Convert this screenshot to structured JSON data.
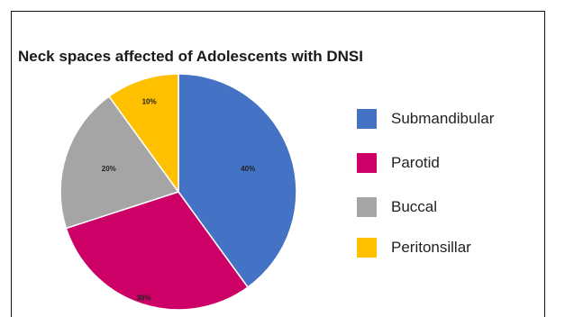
{
  "chart_data": {
    "type": "pie",
    "title": "Neck spaces affected of Adolescents with DNSI",
    "categories": [
      "Submandibular",
      "Parotid",
      "Buccal",
      "Peritonsillar"
    ],
    "values": [
      40,
      30,
      20,
      10
    ],
    "labels": [
      "40%",
      "30%",
      "20%",
      "10%"
    ],
    "colors": [
      "#4472C4",
      "#CC0066",
      "#A5A5A5",
      "#FFC000"
    ],
    "legend_position": "right"
  }
}
